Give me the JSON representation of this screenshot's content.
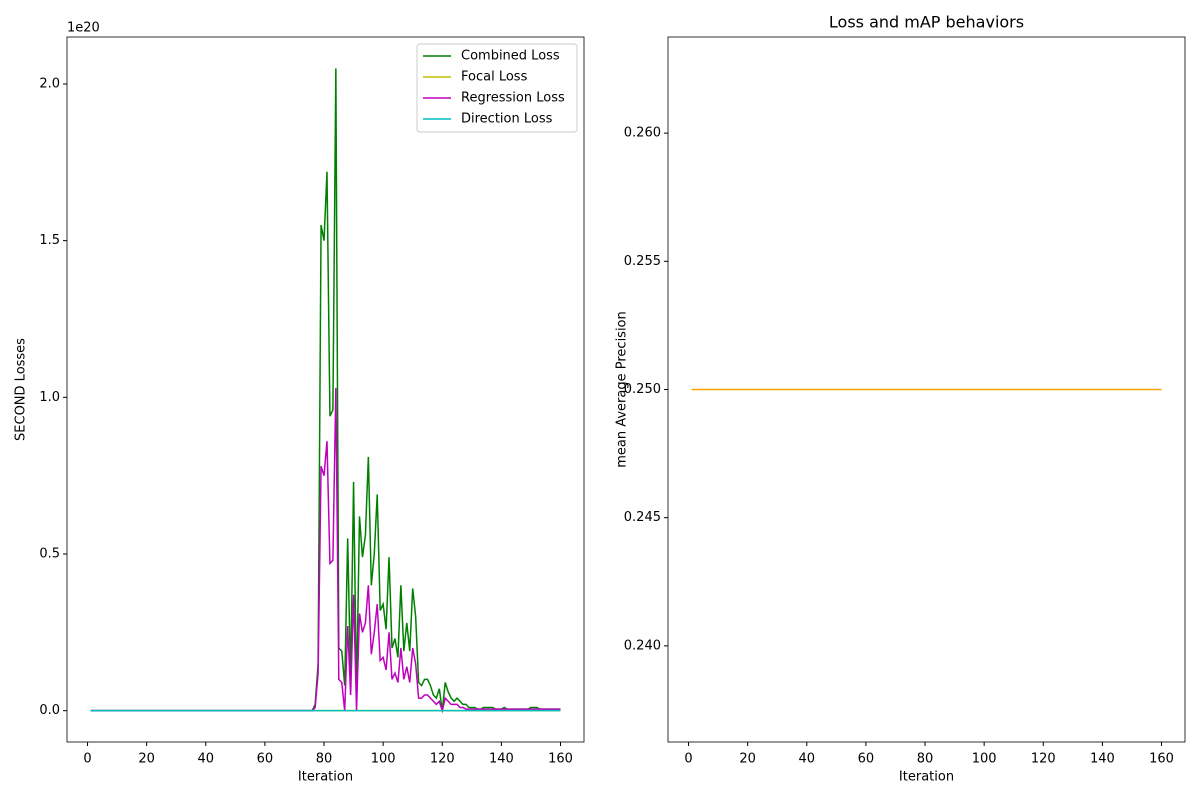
{
  "chart_data": [
    {
      "type": "line",
      "offset_text": "1e20",
      "xlabel": "Iteration",
      "ylabel": "SECOND Losses",
      "xlim": [
        -6.95,
        167.95
      ],
      "xticks": [
        0,
        20,
        40,
        60,
        80,
        100,
        120,
        140,
        160
      ],
      "ylim": [
        -0.1,
        2.15
      ],
      "yticks": [
        {
          "value": 0,
          "label": "0.0"
        },
        0.5,
        {
          "value": 1,
          "label": "1.0"
        },
        1.5,
        {
          "value": 2,
          "label": "2.0"
        }
      ],
      "grid": false,
      "legend": "upper right",
      "x": [
        1,
        2,
        3,
        4,
        5,
        6,
        7,
        8,
        9,
        10,
        11,
        12,
        13,
        14,
        15,
        16,
        17,
        18,
        19,
        20,
        21,
        22,
        23,
        24,
        25,
        26,
        27,
        28,
        29,
        30,
        31,
        32,
        33,
        34,
        35,
        36,
        37,
        38,
        39,
        40,
        41,
        42,
        43,
        44,
        45,
        46,
        47,
        48,
        49,
        50,
        51,
        52,
        53,
        54,
        55,
        56,
        57,
        58,
        59,
        60,
        61,
        62,
        63,
        64,
        65,
        66,
        67,
        68,
        69,
        70,
        71,
        72,
        73,
        74,
        75,
        76,
        77,
        78,
        79,
        80,
        81,
        82,
        83,
        84,
        85,
        86,
        87,
        88,
        89,
        90,
        91,
        92,
        93,
        94,
        95,
        96,
        97,
        98,
        99,
        100,
        101,
        102,
        103,
        104,
        105,
        106,
        107,
        108,
        109,
        110,
        111,
        112,
        113,
        114,
        115,
        116,
        117,
        118,
        119,
        120,
        121,
        122,
        123,
        124,
        125,
        126,
        127,
        128,
        129,
        130,
        131,
        132,
        133,
        134,
        135,
        136,
        137,
        138,
        139,
        140,
        141,
        142,
        143,
        144,
        145,
        146,
        147,
        148,
        149,
        150,
        151,
        152,
        153,
        154,
        155,
        156,
        157,
        158,
        159,
        160
      ],
      "series": [
        {
          "name": "Combined Loss",
          "color": "#008000",
          "values": [
            0,
            0,
            0,
            0,
            0,
            0,
            0,
            0,
            0,
            0,
            0,
            0,
            0,
            0,
            0,
            0,
            0,
            0,
            0,
            0,
            0,
            0,
            0,
            0,
            0,
            0,
            0,
            0,
            0,
            0,
            0,
            0,
            0,
            0,
            0,
            0,
            0,
            0,
            0,
            0,
            0,
            0,
            0,
            0,
            0,
            0,
            0,
            0,
            0,
            0,
            0,
            0,
            0,
            0,
            0,
            0,
            0,
            0,
            0,
            0,
            0,
            0,
            0,
            0,
            0,
            0,
            0,
            0,
            0,
            0,
            0,
            0,
            0,
            0,
            0,
            0,
            0.02,
            0.15,
            1.55,
            1.5,
            1.72,
            0.94,
            0.96,
            2.05,
            0.2,
            0.19,
            0.08,
            0.55,
            0.1,
            0.73,
            0.05,
            0.62,
            0.49,
            0.56,
            0.81,
            0.4,
            0.5,
            0.69,
            0.32,
            0.34,
            0.26,
            0.49,
            0.2,
            0.23,
            0.17,
            0.4,
            0.19,
            0.28,
            0.19,
            0.39,
            0.3,
            0.09,
            0.08,
            0.1,
            0.1,
            0.08,
            0.05,
            0.04,
            0.07,
            0.0,
            0.09,
            0.06,
            0.04,
            0.03,
            0.04,
            0.03,
            0.02,
            0.02,
            0.01,
            0.01,
            0.01,
            0.005,
            0.005,
            0.01,
            0.01,
            0.01,
            0.01,
            0.005,
            0.005,
            0.005,
            0.01,
            0.005,
            0.005,
            0.005,
            0.005,
            0.005,
            0.005,
            0.005,
            0.005,
            0.01,
            0.01,
            0.01,
            0.005,
            0.005,
            0.005,
            0.005,
            0.005,
            0.005,
            0.005,
            0.005
          ]
        },
        {
          "name": "Focal Loss",
          "color": "#bfbf00",
          "values": [
            0,
            0,
            0,
            0,
            0,
            0,
            0,
            0,
            0,
            0,
            0,
            0,
            0,
            0,
            0,
            0,
            0,
            0,
            0,
            0,
            0,
            0,
            0,
            0,
            0,
            0,
            0,
            0,
            0,
            0,
            0,
            0,
            0,
            0,
            0,
            0,
            0,
            0,
            0,
            0,
            0,
            0,
            0,
            0,
            0,
            0,
            0,
            0,
            0,
            0,
            0,
            0,
            0,
            0,
            0,
            0,
            0,
            0,
            0,
            0,
            0,
            0,
            0,
            0,
            0,
            0,
            0,
            0,
            0,
            0,
            0,
            0,
            0,
            0,
            0,
            0,
            0,
            0,
            0,
            0,
            0,
            0,
            0,
            0,
            0,
            0,
            0,
            0,
            0,
            0,
            0,
            0,
            0,
            0,
            0,
            0,
            0,
            0,
            0,
            0,
            0,
            0,
            0,
            0,
            0,
            0,
            0,
            0,
            0,
            0,
            0,
            0,
            0,
            0,
            0,
            0,
            0,
            0,
            0,
            0,
            0,
            0,
            0,
            0,
            0,
            0,
            0,
            0,
            0,
            0,
            0,
            0,
            0,
            0,
            0,
            0,
            0,
            0,
            0,
            0,
            0,
            0,
            0,
            0,
            0,
            0,
            0,
            0,
            0,
            0,
            0,
            0,
            0,
            0,
            0,
            0,
            0,
            0,
            0,
            0
          ]
        },
        {
          "name": "Regression Loss",
          "color": "#bf00bf",
          "values": [
            0,
            0,
            0,
            0,
            0,
            0,
            0,
            0,
            0,
            0,
            0,
            0,
            0,
            0,
            0,
            0,
            0,
            0,
            0,
            0,
            0,
            0,
            0,
            0,
            0,
            0,
            0,
            0,
            0,
            0,
            0,
            0,
            0,
            0,
            0,
            0,
            0,
            0,
            0,
            0,
            0,
            0,
            0,
            0,
            0,
            0,
            0,
            0,
            0,
            0,
            0,
            0,
            0,
            0,
            0,
            0,
            0,
            0,
            0,
            0,
            0,
            0,
            0,
            0,
            0,
            0,
            0,
            0,
            0,
            0,
            0,
            0,
            0,
            0,
            0,
            0,
            0.01,
            0.12,
            0.78,
            0.75,
            0.86,
            0.47,
            0.48,
            1.03,
            0.1,
            0.09,
            0.0,
            0.27,
            0.05,
            0.37,
            0.0,
            0.31,
            0.25,
            0.28,
            0.4,
            0.18,
            0.25,
            0.34,
            0.16,
            0.17,
            0.13,
            0.25,
            0.1,
            0.12,
            0.09,
            0.2,
            0.1,
            0.14,
            0.09,
            0.2,
            0.15,
            0.04,
            0.04,
            0.05,
            0.05,
            0.04,
            0.03,
            0.02,
            0.03,
            0.0,
            0.04,
            0.03,
            0.02,
            0.02,
            0.02,
            0.01,
            0.01,
            0.005,
            0.005,
            0.005,
            0.005,
            0.005,
            0.005,
            0.005,
            0.005,
            0.005,
            0.005,
            0.005,
            0.005,
            0.005,
            0.005,
            0.005,
            0.005,
            0.005,
            0.005,
            0.005,
            0.005,
            0.005,
            0.005,
            0.005,
            0.005,
            0.005,
            0.005,
            0.005,
            0.005,
            0.005,
            0.005,
            0.005,
            0.005,
            0.005
          ]
        },
        {
          "name": "Direction Loss",
          "color": "#00bfbf",
          "values": [
            0,
            0,
            0,
            0,
            0,
            0,
            0,
            0,
            0,
            0,
            0,
            0,
            0,
            0,
            0,
            0,
            0,
            0,
            0,
            0,
            0,
            0,
            0,
            0,
            0,
            0,
            0,
            0,
            0,
            0,
            0,
            0,
            0,
            0,
            0,
            0,
            0,
            0,
            0,
            0,
            0,
            0,
            0,
            0,
            0,
            0,
            0,
            0,
            0,
            0,
            0,
            0,
            0,
            0,
            0,
            0,
            0,
            0,
            0,
            0,
            0,
            0,
            0,
            0,
            0,
            0,
            0,
            0,
            0,
            0,
            0,
            0,
            0,
            0,
            0,
            0,
            0,
            0,
            0,
            0,
            0,
            0,
            0,
            0,
            0,
            0,
            0,
            0,
            0,
            0,
            0,
            0,
            0,
            0,
            0,
            0,
            0,
            0,
            0,
            0,
            0,
            0,
            0,
            0,
            0,
            0,
            0,
            0,
            0,
            0,
            0,
            0,
            0,
            0,
            0,
            0,
            0,
            0,
            0,
            0,
            0,
            0,
            0,
            0,
            0,
            0,
            0,
            0,
            0,
            0,
            0,
            0,
            0,
            0,
            0,
            0,
            0,
            0,
            0,
            0,
            0,
            0,
            0,
            0,
            0,
            0,
            0,
            0,
            0,
            0,
            0,
            0,
            0,
            0,
            0,
            0,
            0,
            0,
            0,
            0
          ]
        }
      ]
    },
    {
      "type": "line",
      "title": "Loss and mAP behaviors",
      "xlabel": "Iteration",
      "ylabel": "mean Average Precision",
      "xlim": [
        -6.95,
        167.95
      ],
      "xticks": [
        0,
        20,
        40,
        60,
        80,
        100,
        120,
        140,
        160
      ],
      "ylim": [
        0.23625,
        0.26375
      ],
      "yticks": [
        {
          "value": 0.24,
          "label": "0.240"
        },
        0.245,
        {
          "value": 0.25,
          "label": "0.250"
        },
        0.255,
        {
          "value": 0.26,
          "label": "0.260"
        }
      ],
      "grid": false,
      "x": [
        1,
        2,
        3,
        4,
        5,
        6,
        7,
        8,
        9,
        10,
        11,
        12,
        13,
        14,
        15,
        16,
        17,
        18,
        19,
        20,
        21,
        22,
        23,
        24,
        25,
        26,
        27,
        28,
        29,
        30,
        31,
        32,
        33,
        34,
        35,
        36,
        37,
        38,
        39,
        40,
        41,
        42,
        43,
        44,
        45,
        46,
        47,
        48,
        49,
        50,
        51,
        52,
        53,
        54,
        55,
        56,
        57,
        58,
        59,
        60,
        61,
        62,
        63,
        64,
        65,
        66,
        67,
        68,
        69,
        70,
        71,
        72,
        73,
        74,
        75,
        76,
        77,
        78,
        79,
        80,
        81,
        82,
        83,
        84,
        85,
        86,
        87,
        88,
        89,
        90,
        91,
        92,
        93,
        94,
        95,
        96,
        97,
        98,
        99,
        100,
        101,
        102,
        103,
        104,
        105,
        106,
        107,
        108,
        109,
        110,
        111,
        112,
        113,
        114,
        115,
        116,
        117,
        118,
        119,
        120,
        121,
        122,
        123,
        124,
        125,
        126,
        127,
        128,
        129,
        130,
        131,
        132,
        133,
        134,
        135,
        136,
        137,
        138,
        139,
        140,
        141,
        142,
        143,
        144,
        145,
        146,
        147,
        148,
        149,
        150,
        151,
        152,
        153,
        154,
        155,
        156,
        157,
        158,
        159,
        160
      ],
      "series": [
        {
          "color": "#ffa500",
          "values": [
            0.25,
            0.25,
            0.25,
            0.25,
            0.25,
            0.25,
            0.25,
            0.25,
            0.25,
            0.25,
            0.25,
            0.25,
            0.25,
            0.25,
            0.25,
            0.25,
            0.25,
            0.25,
            0.25,
            0.25,
            0.25,
            0.25,
            0.25,
            0.25,
            0.25,
            0.25,
            0.25,
            0.25,
            0.25,
            0.25,
            0.25,
            0.25,
            0.25,
            0.25,
            0.25,
            0.25,
            0.25,
            0.25,
            0.25,
            0.25,
            0.25,
            0.25,
            0.25,
            0.25,
            0.25,
            0.25,
            0.25,
            0.25,
            0.25,
            0.25,
            0.25,
            0.25,
            0.25,
            0.25,
            0.25,
            0.25,
            0.25,
            0.25,
            0.25,
            0.25,
            0.25,
            0.25,
            0.25,
            0.25,
            0.25,
            0.25,
            0.25,
            0.25,
            0.25,
            0.25,
            0.25,
            0.25,
            0.25,
            0.25,
            0.25,
            0.25,
            0.25,
            0.25,
            0.25,
            0.25,
            0.25,
            0.25,
            0.25,
            0.25,
            0.25,
            0.25,
            0.25,
            0.25,
            0.25,
            0.25,
            0.25,
            0.25,
            0.25,
            0.25,
            0.25,
            0.25,
            0.25,
            0.25,
            0.25,
            0.25,
            0.25,
            0.25,
            0.25,
            0.25,
            0.25,
            0.25,
            0.25,
            0.25,
            0.25,
            0.25,
            0.25,
            0.25,
            0.25,
            0.25,
            0.25,
            0.25,
            0.25,
            0.25,
            0.25,
            0.25,
            0.25,
            0.25,
            0.25,
            0.25,
            0.25,
            0.25,
            0.25,
            0.25,
            0.25,
            0.25,
            0.25,
            0.25,
            0.25,
            0.25,
            0.25,
            0.25,
            0.25,
            0.25,
            0.25,
            0.25,
            0.25,
            0.25,
            0.25,
            0.25,
            0.25,
            0.25,
            0.25,
            0.25,
            0.25,
            0.25,
            0.25,
            0.25,
            0.25,
            0.25,
            0.25,
            0.25,
            0.25,
            0.25,
            0.25,
            0.25
          ]
        }
      ]
    }
  ]
}
